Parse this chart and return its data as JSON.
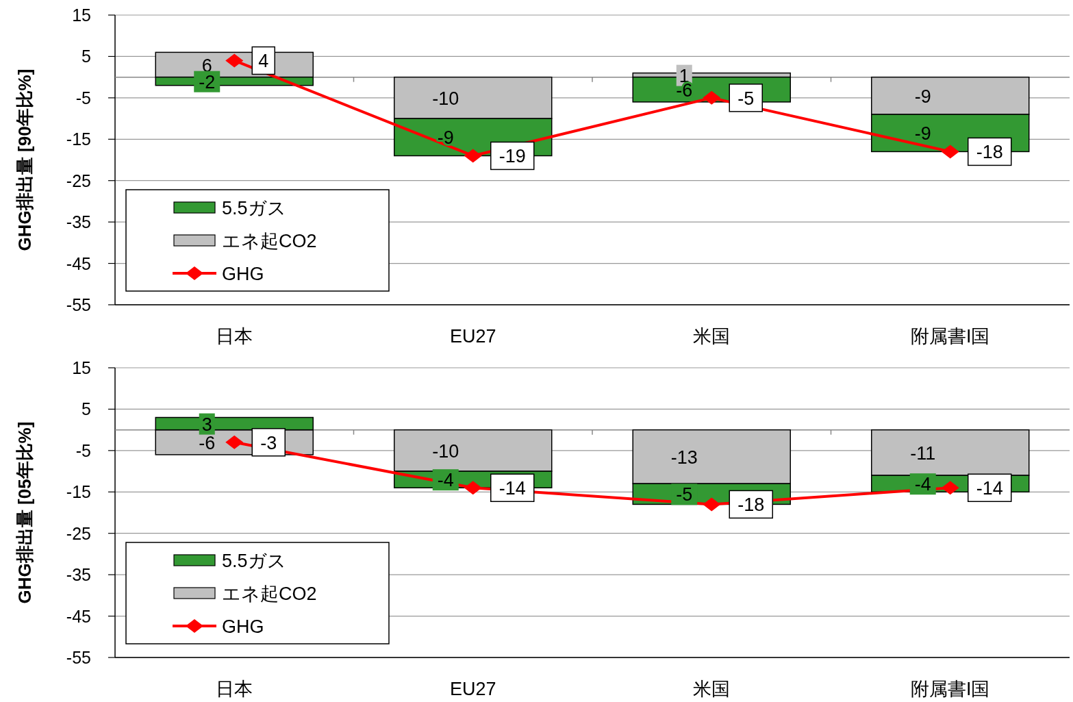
{
  "chart_data": [
    {
      "type": "bar",
      "stacked": true,
      "ylabel": "GHG排出量 [90年比%]",
      "categories": [
        "日本",
        "EU27",
        "米国",
        "附属書I国"
      ],
      "ylim": [
        -55,
        15
      ],
      "yticks": [
        15,
        5,
        -5,
        -15,
        -25,
        -35,
        -45,
        -55
      ],
      "grid": "y",
      "legend": "bottom left",
      "data_labels": true,
      "series": [
        {
          "name": "エネ起CO2",
          "color": "#c0c0c0",
          "values": [
            6,
            -10,
            1,
            -9
          ]
        },
        {
          "name": "5.5ガス",
          "color": "#339933",
          "values": [
            -2,
            -9,
            -6,
            -9
          ]
        },
        {
          "name": "GHG",
          "type": "line",
          "color": "#ff0000",
          "marker": "diamond",
          "values": [
            4,
            -19,
            -5,
            -18
          ]
        }
      ]
    },
    {
      "type": "bar",
      "stacked": true,
      "ylabel": "GHG排出量 [05年比%]",
      "categories": [
        "日本",
        "EU27",
        "米国",
        "附属書I国"
      ],
      "ylim": [
        -55,
        15
      ],
      "yticks": [
        15,
        5,
        -5,
        -15,
        -25,
        -35,
        -45,
        -55
      ],
      "grid": "y",
      "legend": "bottom left",
      "data_labels": true,
      "series": [
        {
          "name": "エネ起CO2",
          "color": "#c0c0c0",
          "values": [
            -6,
            -10,
            -13,
            -11
          ]
        },
        {
          "name": "5.5ガス",
          "color": "#339933",
          "values": [
            3,
            -4,
            -5,
            -4
          ]
        },
        {
          "name": "GHG",
          "type": "line",
          "color": "#ff0000",
          "marker": "diamond",
          "values": [
            -3,
            -14,
            -18,
            -14
          ]
        }
      ]
    }
  ]
}
